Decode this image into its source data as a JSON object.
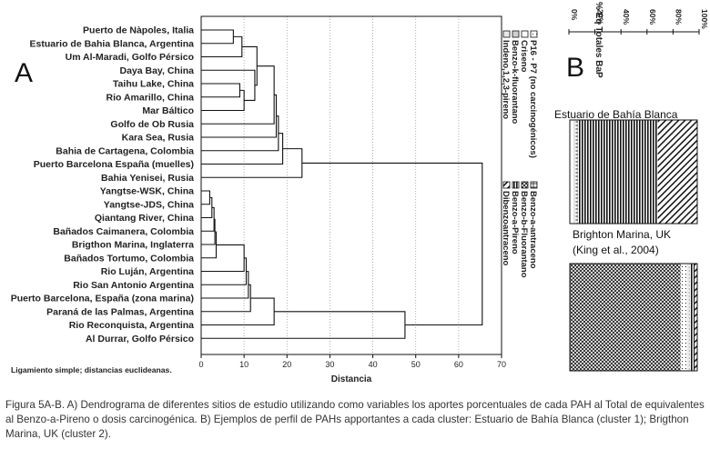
{
  "panel_a_letter": "A",
  "panel_b_letter": "B",
  "caption": "Figura 5A-B. A) Dendrograma de diferentes sitios de estudio utilizando como variables los aportes porcentuales de cada PAH al Total de equivalentes al Benzo-a-Pireno o dosis carcinogénica. B) Ejemplos de perfil de PAHs apportantes a cada cluster: Estuario de Bahía Blanca (cluster 1); Brigthon Marina, UK (cluster 2).",
  "chart_data": [
    {
      "type": "dendrogram",
      "orientation": "horizontal",
      "xlabel": "Distancia",
      "xlim": [
        0,
        70
      ],
      "x_ticks": [
        0,
        10,
        20,
        30,
        40,
        50,
        60,
        70
      ],
      "grid": "vertical dotted",
      "note": "Ligamiento simple; distancias euclideanas.",
      "leaves": [
        "Puerto de Nàpoles, Italia",
        "Estuario de Bahia Blanca, Argentina",
        "Um Al-Maradi, Golfo Pérsico",
        "Daya Bay, China",
        "Taihu Lake, China",
        "Rio Amarillo, China",
        "Mar Báltico",
        "Golfo de Ob Rusia",
        "Kara Sea, Rusia",
        "Bahia de Cartagena, Colombia",
        "Puerto Barcelona España (muelles)",
        "Bahia Yenisei, Rusia",
        "Yangtse-WSK, China",
        "Yangtse-JDS, China",
        "Qiantang River, China",
        "Bañados Caimanera, Colombia",
        "Brigthon Marina, Inglaterra",
        "Bañados Tortumo, Colombia",
        "Rio Luján, Argentina",
        "Rio San Antonio Argentina",
        "Puerto Barcelona, España (zona marina)",
        "Paraná de las Palmas, Argentina",
        "Rio Reconquista, Argentina",
        "Al Durrar, Golfo Pérsico"
      ],
      "merges": [
        {
          "a": "L0",
          "b": "L1",
          "h": 7.5
        },
        {
          "a": "M0",
          "b": "L2",
          "h": 9.5
        },
        {
          "a": "L4",
          "b": "L5",
          "h": 9.0
        },
        {
          "a": "M2",
          "b": "L6",
          "h": 10.0
        },
        {
          "a": "L3",
          "b": "M3",
          "h": 12.5
        },
        {
          "a": "M1",
          "b": "M4",
          "h": 13.0
        },
        {
          "a": "M5",
          "b": "L7",
          "h": 17.0
        },
        {
          "a": "M6",
          "b": "L8",
          "h": 17.5
        },
        {
          "a": "M7",
          "b": "L9",
          "h": 18.0
        },
        {
          "a": "M8",
          "b": "L10",
          "h": 19.0
        },
        {
          "a": "M9",
          "b": "L11",
          "h": 23.5
        },
        {
          "a": "L12",
          "b": "L13",
          "h": 2.0
        },
        {
          "a": "M11",
          "b": "L14",
          "h": 2.5
        },
        {
          "a": "M12",
          "b": "L15",
          "h": 3.0
        },
        {
          "a": "M13",
          "b": "L16",
          "h": 3.2
        },
        {
          "a": "M14",
          "b": "L17",
          "h": 3.5
        },
        {
          "a": "M15",
          "b": "L18",
          "h": 10.0
        },
        {
          "a": "M16",
          "b": "L19",
          "h": 10.5
        },
        {
          "a": "M17",
          "b": "L20",
          "h": 11.0
        },
        {
          "a": "M18",
          "b": "L21",
          "h": 11.5
        },
        {
          "a": "M19",
          "b": "L22",
          "h": 17.0
        },
        {
          "a": "M20",
          "b": "L23",
          "h": 47.5
        },
        {
          "a": "M10",
          "b": "M21",
          "h": 65.5
        }
      ]
    },
    {
      "type": "stacked-bar",
      "orientation": "vertical",
      "axis_title": "% Eq Totales BaP",
      "x_ticks": [
        "0%",
        "20%",
        "40%",
        "60%",
        "80%",
        "100%"
      ],
      "legend": [
        "P16 - P7 (no carcinogénicos)",
        "Criseno",
        "Benzo-k-fluorantano",
        "Indeno,1,2,3-pireno",
        "Benzo-a-antraceno",
        "Benzo-b-Fluorantano",
        "Benzo-a-Pireno",
        "Dibenzoantraceno"
      ],
      "bars": [
        {
          "label": "Estuario de Bahía Blanca",
          "sublabel": "",
          "values": [
            2,
            1,
            0.5,
            1,
            1,
            0.5,
            63,
            31
          ]
        },
        {
          "label": "Brighton Marina, UK",
          "sublabel": "(King et al., 2004)",
          "values": [
            5,
            0.5,
            0.5,
            0.5,
            0.5,
            87,
            4,
            2
          ]
        }
      ]
    }
  ]
}
